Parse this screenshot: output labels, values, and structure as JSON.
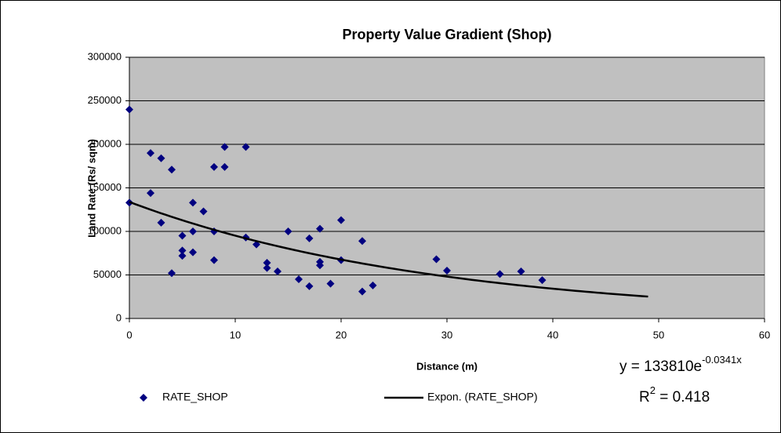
{
  "chart_data": {
    "type": "scatter",
    "title": "Property Value Gradient (Shop)",
    "x_label": "Distance (m)",
    "y_label": "Land Rate (Rs/ sqm)",
    "xlim": [
      0,
      60
    ],
    "xticks": [
      0,
      10,
      20,
      30,
      40,
      50,
      60
    ],
    "ylim": [
      0,
      300000
    ],
    "yticks": [
      0,
      50000,
      100000,
      150000,
      200000,
      250000,
      300000
    ],
    "grid": true,
    "series": [
      {
        "name": "RATE_SHOP",
        "color": "#000080",
        "x": [
          0,
          0,
          2,
          2,
          3,
          3,
          4,
          4,
          5,
          5,
          5,
          6,
          6,
          6,
          7,
          8,
          8,
          8,
          9,
          9,
          11,
          11,
          12,
          13,
          13,
          14,
          15,
          16,
          17,
          17,
          18,
          18,
          18,
          19,
          20,
          20,
          22,
          22,
          23,
          29,
          30,
          35,
          37,
          39
        ],
        "values": [
          240000,
          133000,
          190000,
          144000,
          184000,
          110000,
          171000,
          52000,
          95000,
          78000,
          72000,
          133000,
          100000,
          76000,
          123000,
          174000,
          100000,
          67000,
          197000,
          174000,
          197000,
          93000,
          85000,
          64000,
          58000,
          54000,
          100000,
          45000,
          92000,
          37000,
          103000,
          65000,
          61000,
          40000,
          113000,
          67000,
          89000,
          31000,
          38000,
          68000,
          55000,
          51000,
          54000,
          44000
        ]
      }
    ],
    "trendline": {
      "name": "Expon. (RATE_SHOP)",
      "color": "#000000",
      "a": 133810,
      "b": -0.0341,
      "x_range": [
        0,
        49
      ],
      "equation": "y = 133810e",
      "equation_exponent": "-0.0341x",
      "r2_base": "R",
      "r2_power": "2",
      "r2_value": " = 0.418"
    }
  }
}
